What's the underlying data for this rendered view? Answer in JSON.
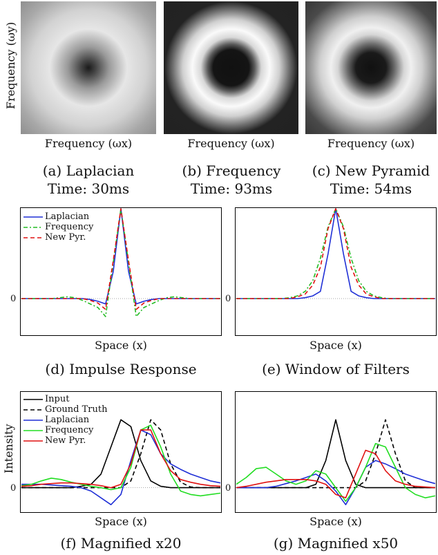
{
  "top_row": {
    "ylabel": "Frequency (ωy)",
    "xlabel": "Frequency (ωx)",
    "panels": [
      {
        "caption": "(a) Laplacian",
        "time": "Time: 30ms"
      },
      {
        "caption": "(b) Frequency",
        "time": "Time: 93ms"
      },
      {
        "caption": "(c) New Pyramid",
        "time": "Time: 54ms"
      }
    ]
  },
  "colors": {
    "input": "#000000",
    "ground_truth": "#000000",
    "laplacian": "#1f2fd6",
    "frequency": "#22dd22",
    "new_pyr": "#e01010",
    "frequency_dashdot": "#22bb22"
  },
  "chart_data": [
    {
      "type": "line",
      "caption": "(d) Impulse Response",
      "xlabel": "Space (x)",
      "ylabel": "",
      "ytick_zero": "0",
      "legend_position": "top-left",
      "x": [
        0,
        1,
        2,
        3,
        4,
        5,
        6,
        7,
        8,
        9,
        10,
        11,
        12,
        13,
        14,
        15,
        16,
        17,
        18,
        19,
        20,
        21,
        22,
        23,
        24,
        25,
        26
      ],
      "ylim": [
        -0.4,
        1.0
      ],
      "series": [
        {
          "name": "Laplacian",
          "style": "solid",
          "values": [
            0,
            0,
            0,
            0,
            0,
            0,
            0,
            0,
            0,
            -0.01,
            -0.03,
            -0.06,
            0.3,
            1.0,
            0.3,
            -0.06,
            -0.03,
            -0.01,
            0,
            0,
            0,
            0,
            0,
            0,
            0,
            0,
            0
          ]
        },
        {
          "name": "Frequency",
          "style": "dashdot",
          "values": [
            0,
            0,
            0,
            0,
            0,
            0.01,
            0.02,
            0.01,
            -0.02,
            -0.06,
            -0.1,
            -0.2,
            0.4,
            1.0,
            0.4,
            -0.2,
            -0.1,
            -0.06,
            -0.02,
            0.01,
            0.02,
            0.01,
            0,
            0,
            0,
            0,
            0
          ]
        },
        {
          "name": "New Pyr.",
          "style": "dashed",
          "values": [
            0,
            0,
            0,
            0,
            0,
            0,
            0,
            0,
            0,
            -0.02,
            -0.05,
            -0.12,
            0.42,
            1.0,
            0.42,
            -0.12,
            -0.05,
            -0.02,
            0,
            0,
            0,
            0,
            0,
            0,
            0,
            0,
            0
          ]
        }
      ]
    },
    {
      "type": "line",
      "caption": "(e) Window of Filters",
      "xlabel": "Space (x)",
      "ylabel": "",
      "ytick_zero": "0",
      "x": [
        0,
        1,
        2,
        3,
        4,
        5,
        6,
        7,
        8,
        9,
        10,
        11,
        12,
        13,
        14,
        15,
        16,
        17,
        18,
        19,
        20,
        21,
        22,
        23,
        24,
        25,
        26
      ],
      "ylim": [
        -0.4,
        1.0
      ],
      "series": [
        {
          "name": "Laplacian",
          "style": "solid",
          "values": [
            0,
            0,
            0,
            0,
            0,
            0,
            0,
            0,
            0,
            0.01,
            0.03,
            0.08,
            0.5,
            1.0,
            0.5,
            0.08,
            0.03,
            0.01,
            0,
            0,
            0,
            0,
            0,
            0,
            0,
            0,
            0
          ]
        },
        {
          "name": "Frequency",
          "style": "dashdot",
          "values": [
            0,
            0,
            0,
            0,
            0,
            0,
            0,
            0.01,
            0.03,
            0.08,
            0.2,
            0.45,
            0.8,
            1.0,
            0.8,
            0.45,
            0.2,
            0.08,
            0.03,
            0.01,
            0,
            0,
            0,
            0,
            0,
            0,
            0
          ]
        },
        {
          "name": "New Pyr.",
          "style": "dashed",
          "values": [
            0,
            0,
            0,
            0,
            0,
            0,
            0,
            0,
            0.02,
            0.05,
            0.15,
            0.35,
            0.78,
            1.0,
            0.78,
            0.35,
            0.15,
            0.05,
            0.02,
            0,
            0,
            0,
            0,
            0,
            0,
            0,
            0
          ]
        }
      ]
    },
    {
      "type": "line",
      "caption": "(f) Magnified x20",
      "xlabel": "Space (x)",
      "ylabel": "Intensity",
      "ytick_zero": "0",
      "legend_position": "top-left",
      "x": [
        0,
        5,
        10,
        15,
        20,
        25,
        30,
        35,
        40,
        45,
        50,
        55,
        60,
        65,
        70,
        75,
        80,
        85,
        90,
        95,
        100
      ],
      "ylim": [
        -0.35,
        1.4
      ],
      "series": [
        {
          "name": "Input",
          "style": "solid",
          "values": [
            0,
            0,
            0,
            0,
            0,
            0,
            0.02,
            0.05,
            0.2,
            0.6,
            1.0,
            0.9,
            0.4,
            0.1,
            0.02,
            0,
            0,
            0,
            0,
            0,
            0
          ]
        },
        {
          "name": "Ground Truth",
          "style": "dashed",
          "values": [
            0,
            0,
            0,
            0,
            0,
            0,
            0,
            0,
            0,
            0,
            0,
            0.1,
            0.5,
            1.0,
            0.85,
            0.35,
            0.08,
            0.01,
            0,
            0,
            0
          ]
        },
        {
          "name": "Laplacian",
          "style": "solid",
          "values": [
            0.05,
            0.05,
            0.05,
            0.04,
            0.03,
            0.02,
            0,
            -0.05,
            -0.15,
            -0.25,
            -0.1,
            0.4,
            0.85,
            0.78,
            0.5,
            0.35,
            0.27,
            0.2,
            0.15,
            0.1,
            0.07
          ]
        },
        {
          "name": "Frequency",
          "style": "solid",
          "values": [
            0.03,
            0.05,
            0.1,
            0.14,
            0.12,
            0.08,
            0.05,
            0.02,
            0,
            -0.03,
            0,
            0.3,
            0.85,
            0.92,
            0.6,
            0.2,
            -0.05,
            -0.1,
            -0.12,
            -0.1,
            -0.08
          ]
        },
        {
          "name": "New Pyr.",
          "style": "solid",
          "values": [
            0.02,
            0.03,
            0.05,
            0.06,
            0.07,
            0.07,
            0.06,
            0.05,
            0.03,
            0,
            0.05,
            0.35,
            0.85,
            0.85,
            0.5,
            0.25,
            0.12,
            0.08,
            0.05,
            0.03,
            0.02
          ]
        }
      ]
    },
    {
      "type": "line",
      "caption": "(g) Magnified x50",
      "xlabel": "Space (x)",
      "ylabel": "",
      "ytick_zero": "0",
      "x": [
        0,
        5,
        10,
        15,
        20,
        25,
        30,
        35,
        40,
        45,
        50,
        55,
        60,
        65,
        70,
        75,
        80,
        85,
        90,
        95,
        100
      ],
      "ylim": [
        -0.35,
        1.4
      ],
      "series": [
        {
          "name": "Input",
          "style": "solid",
          "values": [
            0,
            0,
            0,
            0,
            0,
            0,
            0,
            0,
            0.05,
            0.4,
            1.0,
            0.4,
            0.05,
            0,
            0,
            0,
            0,
            0,
            0,
            0,
            0
          ]
        },
        {
          "name": "Ground Truth",
          "style": "dashed",
          "values": [
            0,
            0,
            0,
            0,
            0,
            0,
            0,
            0,
            0,
            0,
            0,
            0,
            0,
            0.1,
            0.5,
            1.0,
            0.5,
            0.1,
            0,
            0,
            0
          ]
        },
        {
          "name": "Laplacian",
          "style": "solid",
          "values": [
            0,
            0,
            0,
            0,
            0.02,
            0.06,
            0.1,
            0.15,
            0.2,
            0.1,
            -0.05,
            -0.25,
            0,
            0.3,
            0.4,
            0.35,
            0.28,
            0.2,
            0.15,
            0.1,
            0.06
          ]
        },
        {
          "name": "Frequency",
          "style": "solid",
          "values": [
            0.05,
            0.15,
            0.28,
            0.3,
            0.2,
            0.1,
            0.05,
            0.1,
            0.25,
            0.2,
            0,
            -0.2,
            0,
            0.3,
            0.65,
            0.6,
            0.3,
            0,
            -0.1,
            -0.15,
            -0.12
          ]
        },
        {
          "name": "New Pyr.",
          "style": "solid",
          "values": [
            0,
            0.02,
            0.05,
            0.08,
            0.1,
            0.12,
            0.12,
            0.12,
            0.1,
            0.05,
            -0.1,
            -0.15,
            0.2,
            0.55,
            0.5,
            0.25,
            0.1,
            0.05,
            0.02,
            0.01,
            0
          ]
        }
      ]
    }
  ]
}
